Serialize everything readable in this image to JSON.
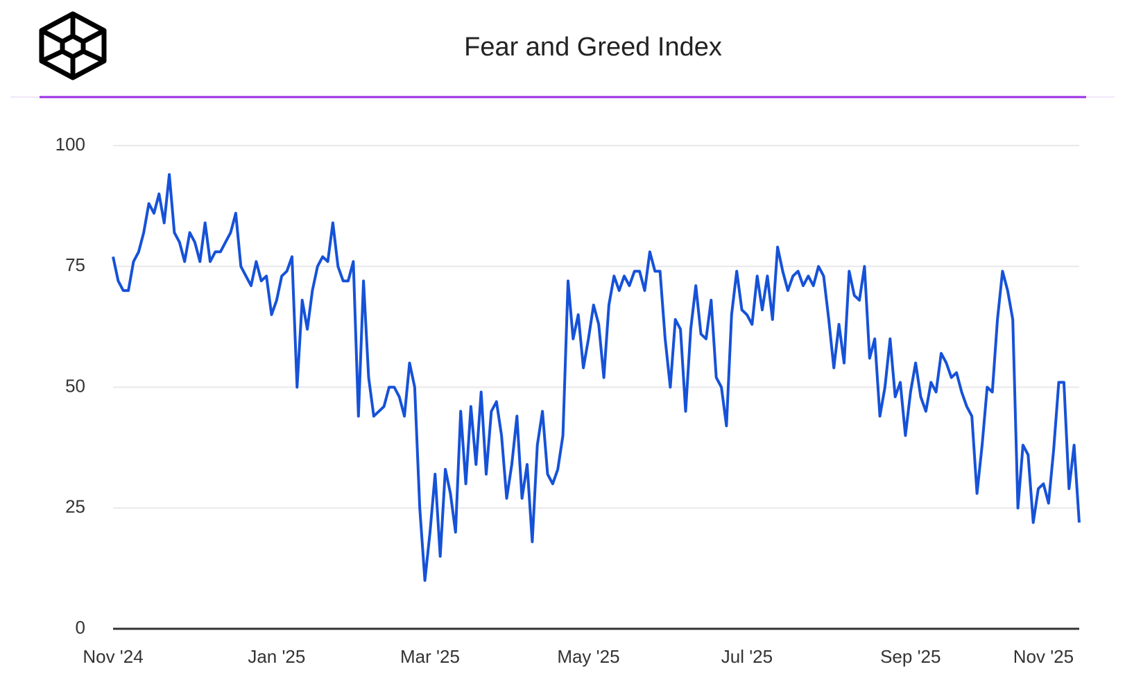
{
  "chart_data": {
    "type": "line",
    "title": "Fear and Greed Index",
    "categories": [
      "Nov '24",
      null,
      null,
      null,
      null,
      null,
      null,
      null,
      null,
      null,
      null,
      null,
      null,
      null,
      null,
      null,
      null,
      null,
      null,
      null,
      null,
      null,
      null,
      null,
      null,
      null,
      null,
      null,
      null,
      null,
      null,
      null,
      "Jan '25",
      null,
      null,
      null,
      null,
      null,
      null,
      null,
      null,
      null,
      null,
      null,
      null,
      null,
      null,
      null,
      null,
      null,
      null,
      null,
      null,
      null,
      null,
      null,
      null,
      null,
      null,
      null,
      null,
      null,
      "Mar '25",
      null,
      null,
      null,
      null,
      null,
      null,
      null,
      null,
      null,
      null,
      null,
      null,
      null,
      null,
      null,
      null,
      null,
      null,
      null,
      null,
      null,
      null,
      null,
      null,
      null,
      null,
      null,
      null,
      null,
      null,
      "May '25",
      null,
      null,
      null,
      null,
      null,
      null,
      null,
      null,
      null,
      null,
      null,
      null,
      null,
      null,
      null,
      null,
      null,
      null,
      null,
      null,
      null,
      null,
      null,
      null,
      null,
      null,
      null,
      null,
      null,
      null,
      "Jul '25",
      null,
      null,
      null,
      null,
      null,
      null,
      null,
      null,
      null,
      null,
      null,
      null,
      null,
      null,
      null,
      null,
      null,
      null,
      null,
      null,
      null,
      null,
      null,
      null,
      null,
      null,
      null,
      null,
      null,
      null,
      null,
      "Sep '25",
      null,
      null,
      null,
      null,
      null,
      null,
      null,
      null,
      null,
      null,
      null,
      null,
      null,
      null,
      null,
      null,
      null,
      null,
      null,
      null,
      null,
      null,
      null,
      null,
      null,
      "Nov '25",
      null,
      null,
      null,
      null,
      null,
      null,
      null
    ],
    "values": [
      77,
      72,
      70,
      70,
      76,
      78,
      82,
      88,
      86,
      90,
      84,
      94,
      82,
      80,
      76,
      82,
      80,
      76,
      84,
      76,
      78,
      78,
      80,
      82,
      86,
      75,
      73,
      71,
      76,
      72,
      73,
      65,
      68,
      73,
      74,
      77,
      50,
      68,
      62,
      70,
      75,
      77,
      76,
      84,
      75,
      72,
      72,
      76,
      44,
      72,
      52,
      44,
      45,
      46,
      50,
      50,
      48,
      44,
      55,
      50,
      25,
      10,
      20,
      32,
      15,
      33,
      28,
      20,
      45,
      30,
      46,
      34,
      49,
      32,
      45,
      47,
      40,
      27,
      34,
      44,
      27,
      34,
      18,
      38,
      45,
      32,
      30,
      33,
      40,
      72,
      60,
      65,
      54,
      60,
      67,
      63,
      52,
      67,
      73,
      70,
      73,
      71,
      74,
      74,
      70,
      78,
      74,
      74,
      60,
      50,
      64,
      62,
      45,
      62,
      71,
      61,
      60,
      68,
      52,
      50,
      42,
      65,
      74,
      66,
      65,
      63,
      73,
      66,
      73,
      64,
      79,
      74,
      70,
      73,
      74,
      71,
      73,
      71,
      75,
      73,
      64,
      54,
      63,
      55,
      74,
      69,
      68,
      75,
      56,
      60,
      44,
      50,
      60,
      48,
      51,
      40,
      49,
      55,
      48,
      45,
      51,
      49,
      57,
      55,
      52,
      53,
      49,
      46,
      44,
      28,
      38,
      50,
      49,
      64,
      74,
      70,
      64,
      25,
      38,
      36,
      22,
      29,
      30,
      26,
      37,
      51,
      51,
      29,
      38,
      22
    ],
    "color": "#1652d8",
    "ylim": [
      0,
      100
    ],
    "yticks": [
      0,
      25,
      50,
      75,
      100
    ],
    "grid": true
  }
}
